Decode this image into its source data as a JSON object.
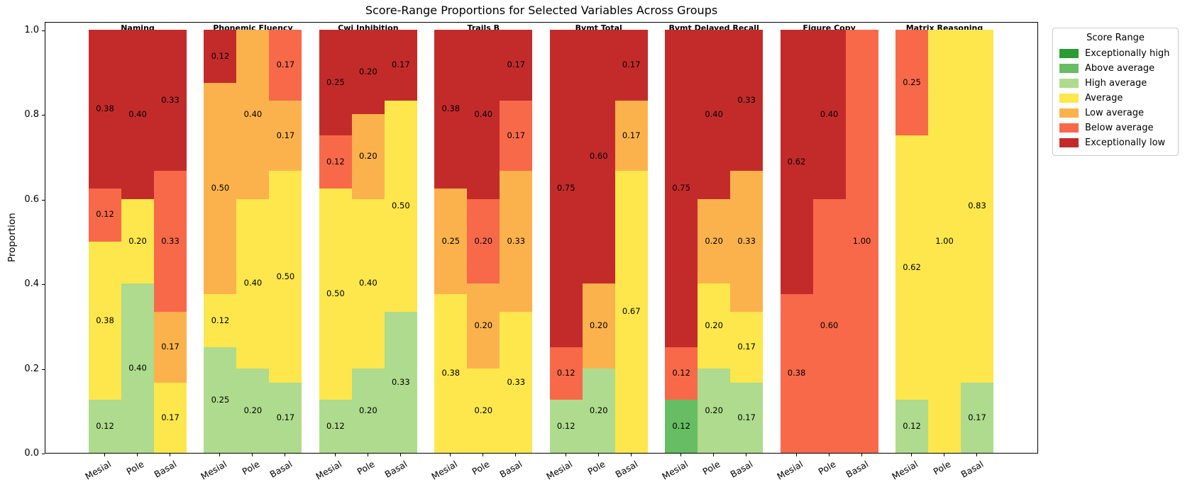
{
  "title": "Score-Range Proportions for Selected Variables Across Groups",
  "ylabel": "Proportion",
  "legend": {
    "title": "Score Range",
    "entries": [
      {
        "label": "Exceptionally high",
        "color": "#2a9c33"
      },
      {
        "label": "Above average",
        "color": "#66bd63"
      },
      {
        "label": "High average",
        "color": "#aedb8d"
      },
      {
        "label": "Average",
        "color": "#fde74c"
      },
      {
        "label": "Low average",
        "color": "#fbb24d"
      },
      {
        "label": "Below average",
        "color": "#f8694a"
      },
      {
        "label": "Exceptionally low",
        "color": "#c32b2b"
      }
    ]
  },
  "chart_data": {
    "type": "bar",
    "stacked": true,
    "normalized": true,
    "title": "Score-Range Proportions for Selected Variables Across Groups",
    "xlabel": "",
    "ylabel": "Proportion",
    "ylim": [
      0.0,
      1.0
    ],
    "yticks": [
      0.0,
      0.2,
      0.4,
      0.6,
      0.8,
      1.0
    ],
    "grid": false,
    "legend_position": "upper right, outside axes",
    "bar_labels": [
      "Mesial",
      "Pole",
      "Basal"
    ],
    "stack_order_bottom_to_top": [
      "Exceptionally high",
      "Above average",
      "High average",
      "Average",
      "Low average",
      "Below average",
      "Exceptionally low"
    ],
    "groups": [
      {
        "name": "Naming",
        "bars": [
          {
            "label": "Mesial",
            "segments": [
              {
                "range": "High average",
                "frac": 0.125,
                "label": "0.12"
              },
              {
                "range": "Average",
                "frac": 0.375,
                "label": "0.38"
              },
              {
                "range": "Below average",
                "frac": 0.125,
                "label": "0.12"
              },
              {
                "range": "Exceptionally low",
                "frac": 0.375,
                "label": "0.38"
              }
            ]
          },
          {
            "label": "Pole",
            "segments": [
              {
                "range": "High average",
                "frac": 0.4,
                "label": "0.40"
              },
              {
                "range": "Average",
                "frac": 0.2,
                "label": "0.20"
              },
              {
                "range": "Exceptionally low",
                "frac": 0.4,
                "label": "0.40"
              }
            ]
          },
          {
            "label": "Basal",
            "segments": [
              {
                "range": "Average",
                "frac": 0.1667,
                "label": "0.17"
              },
              {
                "range": "Low average",
                "frac": 0.1667,
                "label": "0.17"
              },
              {
                "range": "Below average",
                "frac": 0.3333,
                "label": "0.33"
              },
              {
                "range": "Exceptionally low",
                "frac": 0.3333,
                "label": "0.33"
              }
            ]
          }
        ]
      },
      {
        "name": "Phonemic Fluency",
        "bars": [
          {
            "label": "Mesial",
            "segments": [
              {
                "range": "High average",
                "frac": 0.25,
                "label": "0.25"
              },
              {
                "range": "Average",
                "frac": 0.125,
                "label": "0.12"
              },
              {
                "range": "Low average",
                "frac": 0.5,
                "label": "0.50"
              },
              {
                "range": "Exceptionally low",
                "frac": 0.125,
                "label": "0.12"
              }
            ]
          },
          {
            "label": "Pole",
            "segments": [
              {
                "range": "High average",
                "frac": 0.2,
                "label": "0.20"
              },
              {
                "range": "Average",
                "frac": 0.4,
                "label": "0.40"
              },
              {
                "range": "Low average",
                "frac": 0.4,
                "label": "0.40"
              }
            ]
          },
          {
            "label": "Basal",
            "segments": [
              {
                "range": "High average",
                "frac": 0.1667,
                "label": "0.17"
              },
              {
                "range": "Average",
                "frac": 0.5,
                "label": "0.50"
              },
              {
                "range": "Low average",
                "frac": 0.1667,
                "label": "0.17"
              },
              {
                "range": "Below average",
                "frac": 0.1667,
                "label": "0.17"
              }
            ]
          }
        ]
      },
      {
        "name": "Cwi Inhibition",
        "bars": [
          {
            "label": "Mesial",
            "segments": [
              {
                "range": "High average",
                "frac": 0.125,
                "label": "0.12"
              },
              {
                "range": "Average",
                "frac": 0.5,
                "label": "0.50"
              },
              {
                "range": "Below average",
                "frac": 0.125,
                "label": "0.12"
              },
              {
                "range": "Exceptionally low",
                "frac": 0.25,
                "label": "0.25"
              }
            ]
          },
          {
            "label": "Pole",
            "segments": [
              {
                "range": "High average",
                "frac": 0.2,
                "label": "0.20"
              },
              {
                "range": "Average",
                "frac": 0.4,
                "label": "0.40"
              },
              {
                "range": "Low average",
                "frac": 0.2,
                "label": "0.20"
              },
              {
                "range": "Exceptionally low",
                "frac": 0.2,
                "label": "0.20"
              }
            ]
          },
          {
            "label": "Basal",
            "segments": [
              {
                "range": "High average",
                "frac": 0.3333,
                "label": "0.33"
              },
              {
                "range": "Average",
                "frac": 0.5,
                "label": "0.50"
              },
              {
                "range": "Exceptionally low",
                "frac": 0.1667,
                "label": "0.17"
              }
            ]
          }
        ]
      },
      {
        "name": "Trails B",
        "bars": [
          {
            "label": "Mesial",
            "segments": [
              {
                "range": "Average",
                "frac": 0.375,
                "label": "0.38"
              },
              {
                "range": "Low average",
                "frac": 0.25,
                "label": "0.25"
              },
              {
                "range": "Exceptionally low",
                "frac": 0.375,
                "label": "0.38"
              }
            ]
          },
          {
            "label": "Pole",
            "segments": [
              {
                "range": "Average",
                "frac": 0.2,
                "label": "0.20"
              },
              {
                "range": "Low average",
                "frac": 0.2,
                "label": "0.20"
              },
              {
                "range": "Below average",
                "frac": 0.2,
                "label": "0.20"
              },
              {
                "range": "Exceptionally low",
                "frac": 0.4,
                "label": "0.40"
              }
            ]
          },
          {
            "label": "Basal",
            "segments": [
              {
                "range": "Average",
                "frac": 0.3333,
                "label": "0.33"
              },
              {
                "range": "Low average",
                "frac": 0.3333,
                "label": "0.33"
              },
              {
                "range": "Below average",
                "frac": 0.1667,
                "label": "0.17"
              },
              {
                "range": "Exceptionally low",
                "frac": 0.1667,
                "label": "0.17"
              }
            ]
          }
        ]
      },
      {
        "name": "Bvmt Total",
        "bars": [
          {
            "label": "Mesial",
            "segments": [
              {
                "range": "High average",
                "frac": 0.125,
                "label": "0.12"
              },
              {
                "range": "Below average",
                "frac": 0.125,
                "label": "0.12"
              },
              {
                "range": "Exceptionally low",
                "frac": 0.75,
                "label": "0.75"
              }
            ]
          },
          {
            "label": "Pole",
            "segments": [
              {
                "range": "High average",
                "frac": 0.2,
                "label": "0.20"
              },
              {
                "range": "Low average",
                "frac": 0.2,
                "label": "0.20"
              },
              {
                "range": "Exceptionally low",
                "frac": 0.6,
                "label": "0.60"
              }
            ]
          },
          {
            "label": "Basal",
            "segments": [
              {
                "range": "Average",
                "frac": 0.6667,
                "label": "0.67"
              },
              {
                "range": "Low average",
                "frac": 0.1667,
                "label": "0.17"
              },
              {
                "range": "Exceptionally low",
                "frac": 0.1667,
                "label": "0.17"
              }
            ]
          }
        ]
      },
      {
        "name": "Bvmt Delayed Recall",
        "bars": [
          {
            "label": "Mesial",
            "segments": [
              {
                "range": "Above average",
                "frac": 0.125,
                "label": "0.12"
              },
              {
                "range": "Below average",
                "frac": 0.125,
                "label": "0.12"
              },
              {
                "range": "Exceptionally low",
                "frac": 0.75,
                "label": "0.75"
              }
            ]
          },
          {
            "label": "Pole",
            "segments": [
              {
                "range": "High average",
                "frac": 0.2,
                "label": "0.20"
              },
              {
                "range": "Average",
                "frac": 0.2,
                "label": "0.20"
              },
              {
                "range": "Low average",
                "frac": 0.2,
                "label": "0.20"
              },
              {
                "range": "Exceptionally low",
                "frac": 0.4,
                "label": "0.40"
              }
            ]
          },
          {
            "label": "Basal",
            "segments": [
              {
                "range": "High average",
                "frac": 0.1667,
                "label": "0.17"
              },
              {
                "range": "Average",
                "frac": 0.1667,
                "label": "0.17"
              },
              {
                "range": "Low average",
                "frac": 0.3333,
                "label": "0.33"
              },
              {
                "range": "Exceptionally low",
                "frac": 0.3333,
                "label": "0.33"
              }
            ]
          }
        ]
      },
      {
        "name": "Figure Copy",
        "bars": [
          {
            "label": "Mesial",
            "segments": [
              {
                "range": "Below average",
                "frac": 0.375,
                "label": "0.38"
              },
              {
                "range": "Exceptionally low",
                "frac": 0.625,
                "label": "0.62"
              }
            ]
          },
          {
            "label": "Pole",
            "segments": [
              {
                "range": "Below average",
                "frac": 0.6,
                "label": "0.60"
              },
              {
                "range": "Exceptionally low",
                "frac": 0.4,
                "label": "0.40"
              }
            ]
          },
          {
            "label": "Basal",
            "segments": [
              {
                "range": "Below average",
                "frac": 1.0,
                "label": "1.00"
              }
            ]
          }
        ]
      },
      {
        "name": "Matrix Reasoning",
        "bars": [
          {
            "label": "Mesial",
            "segments": [
              {
                "range": "High average",
                "frac": 0.125,
                "label": "0.12"
              },
              {
                "range": "Average",
                "frac": 0.625,
                "label": "0.62"
              },
              {
                "range": "Below average",
                "frac": 0.25,
                "label": "0.25"
              }
            ]
          },
          {
            "label": "Pole",
            "segments": [
              {
                "range": "Average",
                "frac": 1.0,
                "label": "1.00"
              }
            ]
          },
          {
            "label": "Basal",
            "segments": [
              {
                "range": "High average",
                "frac": 0.1667,
                "label": "0.17"
              },
              {
                "range": "Average",
                "frac": 0.8333,
                "label": "0.83"
              }
            ]
          }
        ]
      }
    ]
  }
}
